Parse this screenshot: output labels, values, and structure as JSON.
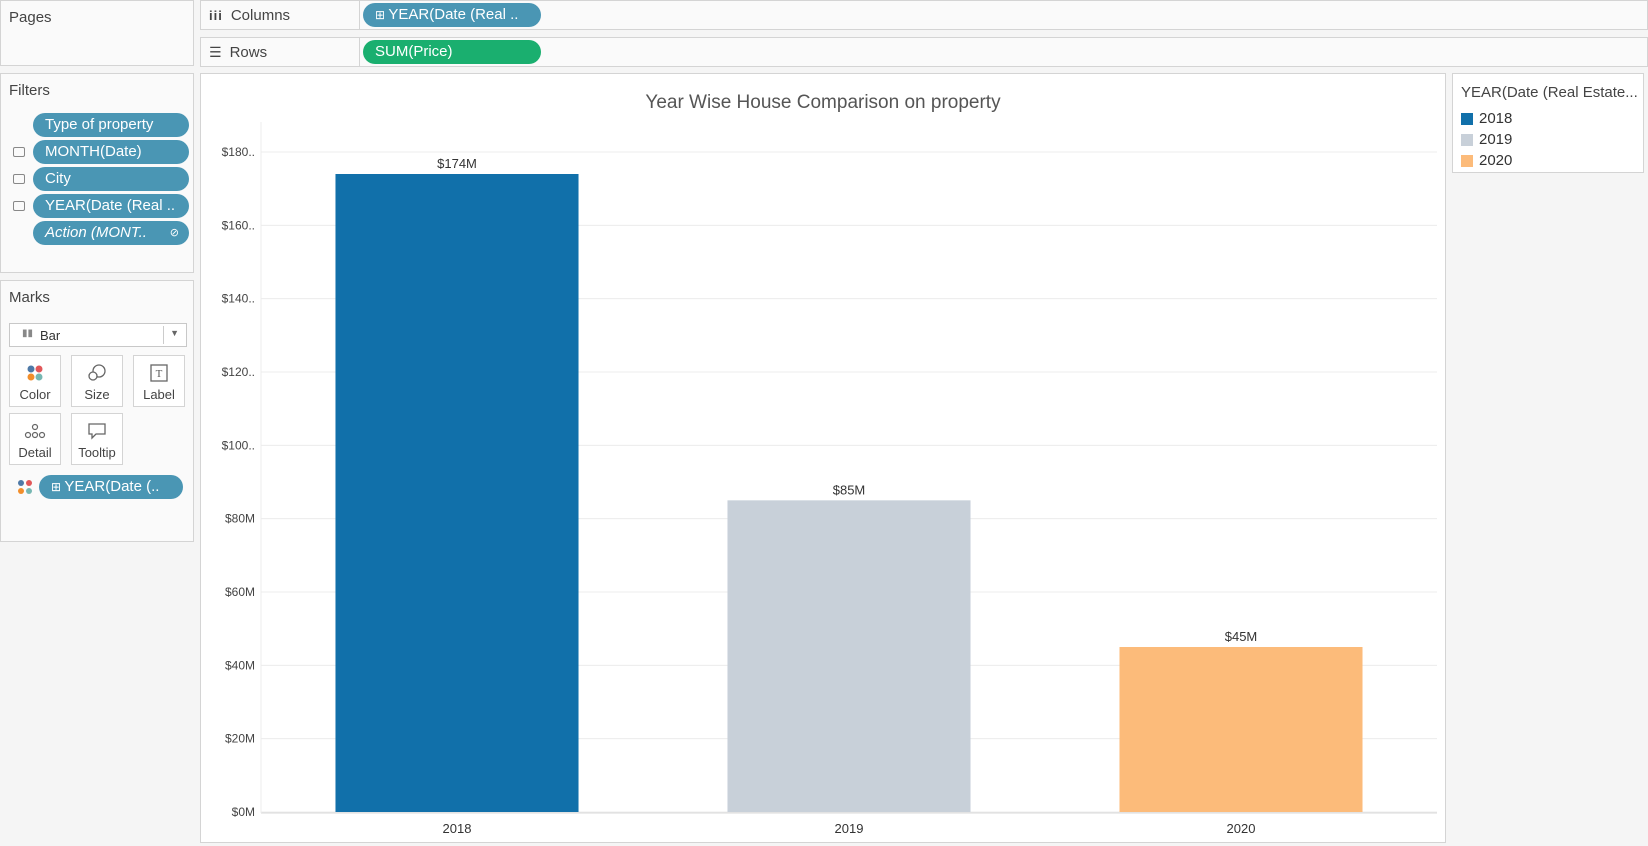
{
  "pages": {
    "title": "Pages"
  },
  "columns": {
    "label": "Columns",
    "pill": "YEAR(Date (Real .."
  },
  "rows": {
    "label": "Rows",
    "pill": "SUM(Price)"
  },
  "filters": {
    "title": "Filters",
    "items": [
      "Type of property",
      "MONTH(Date)",
      "City",
      "YEAR(Date (Real ..",
      "Action (MONT.."
    ]
  },
  "marks": {
    "title": "Marks",
    "type": "Bar",
    "buttons": [
      "Color",
      "Size",
      "Label",
      "Detail",
      "Tooltip"
    ],
    "color_pill": "YEAR(Date (.."
  },
  "legend": {
    "title": "YEAR(Date (Real Estate...",
    "items": [
      {
        "label": "2018",
        "color": "#1170aa"
      },
      {
        "label": "2019",
        "color": "#c8d0d9"
      },
      {
        "label": "2020",
        "color": "#fcbb7a"
      }
    ]
  },
  "chart_data": {
    "type": "bar",
    "title": "Year Wise House Comparison on property",
    "categories": [
      "2018",
      "2019",
      "2020"
    ],
    "values": [
      174,
      85,
      45
    ],
    "data_labels": [
      "$174M",
      "$85M",
      "$45M"
    ],
    "colors": [
      "#1170aa",
      "#c8d0d9",
      "#fcbb7a"
    ],
    "ylim": [
      0,
      180
    ],
    "yticks": [
      0,
      20,
      40,
      60,
      80,
      100,
      120,
      140,
      160,
      180
    ],
    "ytick_labels": [
      "$0M",
      "$20M",
      "$40M",
      "$60M",
      "$80M",
      "$100..",
      "$120..",
      "$140..",
      "$160..",
      "$180.."
    ],
    "grid": true
  }
}
